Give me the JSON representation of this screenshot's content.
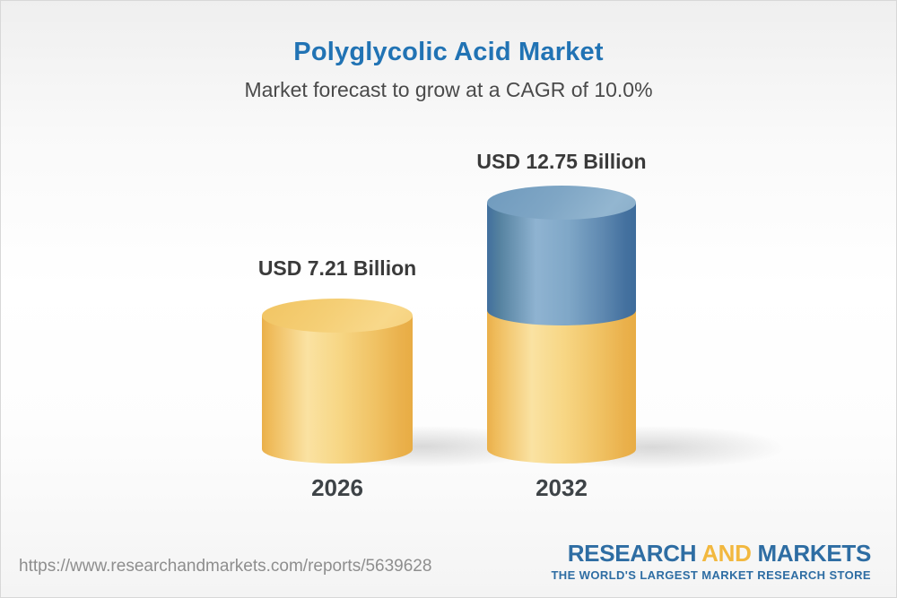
{
  "header": {
    "title": "Polyglycolic Acid Market",
    "subtitle": "Market forecast to grow at a CAGR of 10.0%",
    "title_color": "#2173b4",
    "subtitle_color": "#4a4a4a"
  },
  "chart_data": {
    "type": "bar",
    "style": "3d-cylinder-columns",
    "title": "Polyglycolic Acid Market",
    "subtitle": "Market forecast to grow at a CAGR of 10.0%",
    "cagr": "10.0%",
    "unit": "USD Billion",
    "categories": [
      "2026",
      "2032"
    ],
    "values": [
      7.21,
      12.75
    ],
    "value_labels": [
      "USD 7.21 Billion",
      "USD 12.75 Billion"
    ],
    "series": [
      {
        "name": "base-2026-value",
        "color": "#f2c765",
        "values": [
          7.21,
          7.21
        ]
      },
      {
        "name": "growth-to-2032",
        "color": "#4e7ca8",
        "values": [
          0,
          5.54
        ]
      }
    ],
    "legend": false,
    "grid": false,
    "axes_hidden": true,
    "colors": {
      "yellow": "#f2c765",
      "blue": "#4e7ca8"
    }
  },
  "bars": [
    {
      "year": "2026",
      "label": "USD 7.21 Billion"
    },
    {
      "year": "2032",
      "label": "USD 12.75 Billion"
    }
  ],
  "footer": {
    "url": "https://www.researchandmarkets.com/reports/5639628",
    "logo": {
      "word1": "RESEARCH",
      "word2": "AND",
      "word3": "MARKETS",
      "tagline": "THE WORLD'S LARGEST MARKET RESEARCH STORE",
      "blue": "#2e6da3",
      "yellow": "#f2b83f"
    }
  }
}
